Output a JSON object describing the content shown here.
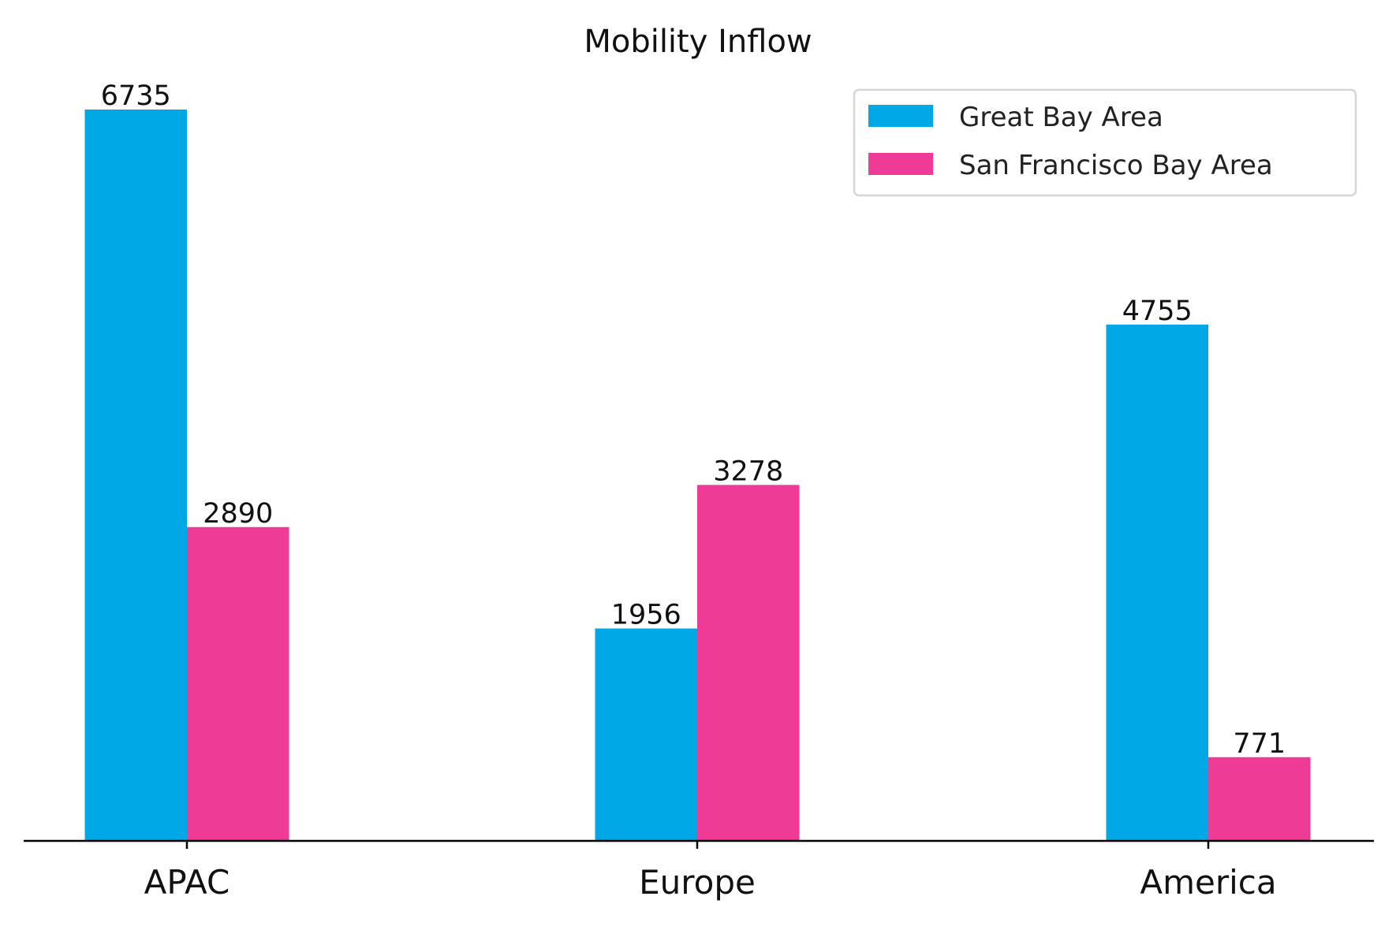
{
  "chart_data": {
    "type": "bar",
    "title": "Mobility Inflow",
    "categories": [
      "APAC",
      "Europe",
      "America"
    ],
    "series": [
      {
        "name": "Great Bay Area",
        "color": "#00A8E6",
        "values": [
          6735,
          1956,
          4755
        ]
      },
      {
        "name": "San Francisco Bay Area",
        "color": "#EE3C96",
        "values": [
          2890,
          3278,
          771
        ]
      }
    ],
    "xlabel": "",
    "ylabel": "",
    "ylim": [
      0,
      7000
    ],
    "grid": false,
    "legend_position": "top-right",
    "axis_color": "#000000"
  }
}
